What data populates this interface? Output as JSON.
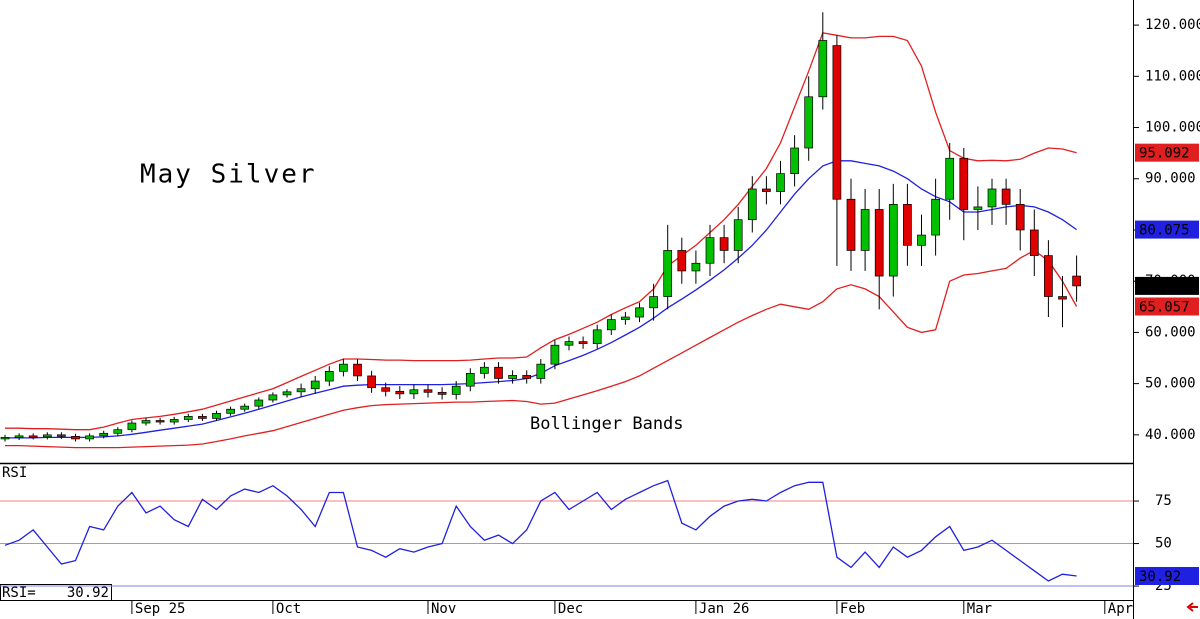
{
  "chart_data": [
    {
      "type": "candlestick",
      "title": "May Silver",
      "annotation": "Bollinger Bands",
      "categories": [
        null,
        null,
        null,
        null,
        null,
        null,
        null,
        null,
        null,
        "Sep 25",
        null,
        null,
        null,
        null,
        null,
        null,
        null,
        null,
        null,
        "Oct",
        null,
        null,
        null,
        null,
        null,
        null,
        null,
        null,
        null,
        null,
        "Nov",
        null,
        null,
        null,
        null,
        null,
        null,
        null,
        null,
        "Dec",
        null,
        null,
        null,
        null,
        null,
        null,
        null,
        null,
        null,
        "Jan 26",
        null,
        null,
        null,
        null,
        null,
        null,
        null,
        null,
        null,
        "Feb",
        null,
        null,
        null,
        null,
        null,
        null,
        null,
        null,
        "Mar",
        null,
        null,
        null,
        null,
        null,
        null,
        null,
        null,
        null,
        "Apr"
      ],
      "open": [
        39.2,
        39.5,
        39.8,
        39.6,
        40.0,
        39.7,
        39.2,
        39.8,
        40.3,
        41.0,
        42.3,
        42.8,
        42.5,
        43.0,
        43.6,
        43.2,
        44.2,
        45.0,
        45.6,
        46.8,
        47.8,
        48.4,
        49.0,
        50.5,
        52.4,
        53.8,
        51.5,
        49.2,
        48.5,
        48.0,
        48.8,
        48.3,
        47.9,
        49.5,
        52.0,
        53.2,
        51.0,
        51.6,
        51.0,
        53.8,
        57.5,
        58.2,
        57.8,
        60.5,
        62.5,
        63.0,
        64.8,
        67.0,
        76.0,
        72.0,
        73.5,
        78.5,
        76.0,
        82.0,
        88.0,
        87.5,
        91.0,
        96.0,
        106.0,
        116.0,
        86.0,
        76.0,
        84.0,
        71.0,
        85.0,
        77.0,
        79.0,
        86.0,
        94.0,
        84.0,
        84.5,
        88.0,
        85.0,
        80.0,
        75.0,
        67.0,
        71.0,
        null,
        null
      ],
      "high": [
        40.0,
        40.3,
        40.3,
        40.5,
        40.5,
        40.2,
        40.3,
        40.8,
        41.5,
        42.8,
        43.3,
        43.3,
        43.5,
        44.1,
        44.1,
        44.7,
        45.5,
        46.1,
        47.3,
        48.3,
        48.9,
        50.0,
        51.5,
        53.4,
        54.8,
        54.8,
        52.5,
        50.2,
        49.5,
        49.8,
        49.8,
        49.3,
        50.5,
        53.0,
        54.2,
        54.2,
        52.6,
        52.6,
        54.8,
        58.5,
        59.2,
        59.2,
        61.5,
        63.5,
        64.0,
        65.8,
        69.5,
        81.0,
        78.5,
        76.0,
        81.0,
        81.0,
        84.5,
        90.5,
        90.5,
        93.5,
        98.5,
        110.0,
        122.5,
        118.0,
        90.0,
        88.0,
        88.0,
        89.0,
        89.0,
        83.0,
        90.0,
        97.0,
        96.0,
        88.5,
        90.0,
        90.0,
        88.0,
        84.0,
        78.0,
        71.0,
        75.0,
        null,
        null
      ],
      "low": [
        38.7,
        39.0,
        39.1,
        39.1,
        39.2,
        38.7,
        38.7,
        39.3,
        39.8,
        40.5,
        41.8,
        42.0,
        42.0,
        42.5,
        42.7,
        42.7,
        43.7,
        44.5,
        45.1,
        46.3,
        47.3,
        47.4,
        48.0,
        49.5,
        51.4,
        50.5,
        48.2,
        47.5,
        47.0,
        47.0,
        47.3,
        46.9,
        46.9,
        48.5,
        51.0,
        50.0,
        50.0,
        50.0,
        50.0,
        52.8,
        56.5,
        56.8,
        56.8,
        59.5,
        61.5,
        62.0,
        62.3,
        64.5,
        69.5,
        69.5,
        71.0,
        73.5,
        73.5,
        79.5,
        85.0,
        85.0,
        88.5,
        93.5,
        103.5,
        73.0,
        72.0,
        72.0,
        64.5,
        67.0,
        73.0,
        73.0,
        75.0,
        82.0,
        78.0,
        80.0,
        81.0,
        81.0,
        76.0,
        71.0,
        63.0,
        61.0,
        66.0,
        null,
        null
      ],
      "close": [
        39.5,
        39.8,
        39.6,
        40.0,
        39.7,
        39.2,
        39.8,
        40.3,
        41.0,
        42.3,
        42.8,
        42.5,
        43.0,
        43.6,
        43.2,
        44.2,
        45.0,
        45.6,
        46.8,
        47.8,
        48.4,
        49.0,
        50.5,
        52.4,
        53.8,
        51.5,
        49.2,
        48.5,
        48.0,
        48.8,
        48.3,
        47.9,
        49.5,
        52.0,
        53.2,
        51.0,
        51.6,
        51.0,
        53.8,
        57.5,
        58.2,
        57.8,
        60.5,
        62.5,
        63.0,
        64.8,
        67.0,
        76.0,
        72.0,
        73.5,
        78.5,
        76.0,
        82.0,
        88.0,
        87.5,
        91.0,
        96.0,
        106.0,
        117.0,
        86.0,
        76.0,
        84.0,
        71.0,
        85.0,
        77.0,
        79.0,
        86.0,
        94.0,
        84.0,
        84.5,
        88.0,
        85.0,
        80.0,
        75.0,
        67.0,
        66.5,
        69.08,
        null,
        null
      ],
      "close_label": "69.080",
      "up_color": "#00c000",
      "down_color": "#e00000",
      "series": [
        {
          "color": "#e02020",
          "values": [
            41.3,
            41.3,
            41.2,
            41.2,
            41.1,
            41.0,
            41.0,
            41.5,
            42.3,
            43.0,
            43.3,
            43.6,
            44.0,
            44.5,
            45.0,
            45.8,
            46.6,
            47.4,
            48.2,
            49.0,
            50.2,
            51.4,
            52.6,
            53.8,
            54.8,
            54.8,
            54.7,
            54.6,
            54.6,
            54.5,
            54.5,
            54.5,
            54.5,
            54.6,
            54.8,
            55.0,
            55.0,
            55.2,
            57.0,
            58.6,
            59.6,
            60.8,
            62.0,
            63.5,
            64.8,
            66.0,
            68.5,
            73.0,
            75.0,
            77.0,
            79.5,
            82.0,
            85.0,
            88.5,
            92.0,
            97.0,
            104.0,
            111.0,
            118.5,
            118.0,
            117.5,
            117.5,
            117.8,
            117.8,
            117.0,
            112.0,
            103.0,
            95.5,
            94.0,
            93.5,
            93.6,
            93.5,
            93.8,
            95.0,
            96.0,
            95.8,
            95.092,
            null,
            null
          ]
        },
        {
          "color": "#2020e0",
          "values": [
            39.4,
            39.4,
            39.4,
            39.5,
            39.5,
            39.5,
            39.5,
            39.6,
            39.8,
            40.1,
            40.5,
            40.9,
            41.3,
            41.7,
            42.1,
            42.8,
            43.5,
            44.2,
            45.0,
            45.8,
            46.6,
            47.4,
            48.1,
            48.8,
            49.5,
            49.7,
            49.8,
            49.8,
            49.8,
            49.8,
            49.8,
            49.8,
            49.9,
            50.0,
            50.2,
            50.4,
            50.6,
            51.0,
            52.0,
            53.5,
            54.5,
            55.5,
            56.7,
            58.0,
            59.5,
            61.0,
            62.8,
            64.8,
            66.5,
            68.3,
            70.2,
            72.2,
            74.5,
            77.0,
            80.0,
            83.5,
            87.0,
            90.0,
            92.5,
            93.5,
            93.5,
            93.0,
            92.5,
            91.5,
            90.0,
            88.0,
            86.5,
            85.5,
            83.5,
            83.5,
            84.0,
            84.5,
            84.8,
            84.5,
            83.5,
            82.0,
            80.075,
            null,
            null
          ]
        },
        {
          "color": "#e02020",
          "values": [
            37.9,
            37.9,
            37.8,
            37.7,
            37.6,
            37.5,
            37.5,
            37.5,
            37.5,
            37.6,
            37.7,
            37.8,
            37.9,
            38.0,
            38.2,
            38.7,
            39.2,
            39.8,
            40.3,
            40.8,
            41.6,
            42.4,
            43.2,
            44.0,
            44.8,
            45.3,
            45.7,
            45.9,
            46.0,
            46.1,
            46.2,
            46.3,
            46.4,
            46.4,
            46.5,
            46.6,
            46.7,
            46.5,
            46.0,
            46.2,
            47.0,
            47.8,
            48.6,
            49.5,
            50.4,
            51.5,
            53.0,
            54.5,
            56.0,
            57.5,
            59.0,
            60.5,
            62.0,
            63.3,
            64.5,
            65.5,
            65.0,
            64.5,
            66.0,
            68.5,
            69.3,
            68.5,
            67.0,
            64.0,
            61.0,
            60.0,
            60.5,
            70.0,
            71.2,
            71.5,
            72.0,
            72.5,
            74.5,
            76.0,
            74.0,
            70.0,
            65.057,
            null,
            null
          ]
        }
      ],
      "ylim": [
        34.5,
        124.9
      ],
      "yticks": [
        {
          "value": 40,
          "label": "40.000"
        },
        {
          "value": 50,
          "label": "50.000"
        },
        {
          "value": 60,
          "label": "60.000"
        },
        {
          "value": 70,
          "label": "70.000"
        },
        {
          "value": 80,
          "label": "80.000"
        },
        {
          "value": 90,
          "label": "90.000"
        },
        {
          "value": 100,
          "label": "100.000"
        },
        {
          "value": 110,
          "label": "110.000"
        },
        {
          "value": 120,
          "label": "120.000"
        }
      ]
    },
    {
      "type": "line",
      "title": "RSI",
      "value_prefix": "RSI=",
      "color": "#2020e0",
      "values": [
        49,
        52,
        58,
        48,
        38,
        40,
        60,
        58,
        72,
        80,
        68,
        72,
        64,
        60,
        76,
        70,
        78,
        82,
        80,
        84,
        78,
        70,
        60,
        80,
        80,
        48,
        46,
        42,
        47,
        45,
        48,
        50,
        72,
        60,
        52,
        55,
        50,
        58,
        75,
        80,
        70,
        75,
        80,
        70,
        76,
        80,
        84,
        87,
        62,
        58,
        66,
        72,
        75,
        76,
        75,
        80,
        84,
        86,
        86,
        42,
        36,
        45,
        36,
        48,
        42,
        46,
        54,
        60,
        46,
        48,
        52,
        46,
        40,
        34,
        28,
        32,
        30.92,
        null,
        null
      ],
      "ylim": [
        16.8,
        96.2
      ],
      "yticks": [
        75,
        50,
        25
      ],
      "reference_colors": [
        "#f08080",
        "#a0a0a0",
        "#8080f0"
      ]
    }
  ]
}
